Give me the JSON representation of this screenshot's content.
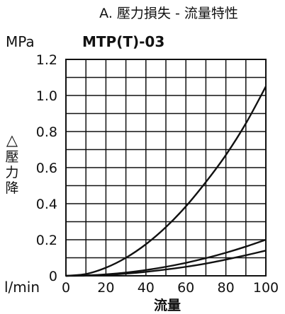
{
  "chart_data": {
    "type": "line",
    "title": "A. 壓力損失 - 流量特性",
    "model": "MTP(T)-03",
    "y_unit": "MPa",
    "x_unit": "l/min",
    "xlabel": "流量",
    "ylabel_lines": [
      "△",
      "壓",
      "力",
      "降"
    ],
    "xlim": [
      0,
      100
    ],
    "ylim": [
      0,
      1.2
    ],
    "grid": true,
    "x_ticks": [
      "0",
      "20",
      "40",
      "60",
      "80",
      "100"
    ],
    "y_ticks": [
      "0",
      "0.2",
      "0.4",
      "0.6",
      "0.8",
      "1.0",
      "1.2"
    ],
    "x_grid_values": [
      0,
      10,
      20,
      30,
      40,
      50,
      60,
      70,
      80,
      90,
      100
    ],
    "y_grid_values": [
      0,
      0.1,
      0.2,
      0.3,
      0.4,
      0.5,
      0.6,
      0.7,
      0.8,
      0.9,
      1.0,
      1.1,
      1.2
    ],
    "x": [
      0,
      10,
      20,
      30,
      40,
      50,
      60,
      70,
      80,
      90,
      100
    ],
    "series": [
      {
        "values": [
          0,
          0.01,
          0.045,
          0.1,
          0.175,
          0.27,
          0.385,
          0.52,
          0.67,
          0.845,
          1.05
        ]
      },
      {
        "values": [
          0,
          0.002,
          0.008,
          0.018,
          0.032,
          0.05,
          0.072,
          0.098,
          0.128,
          0.162,
          0.2
        ]
      },
      {
        "values": [
          0,
          0.001,
          0.005,
          0.012,
          0.022,
          0.035,
          0.05,
          0.068,
          0.09,
          0.114,
          0.14
        ]
      }
    ],
    "colors": {
      "line": "#111111",
      "grid": "#111111",
      "background": "#ffffff"
    }
  }
}
